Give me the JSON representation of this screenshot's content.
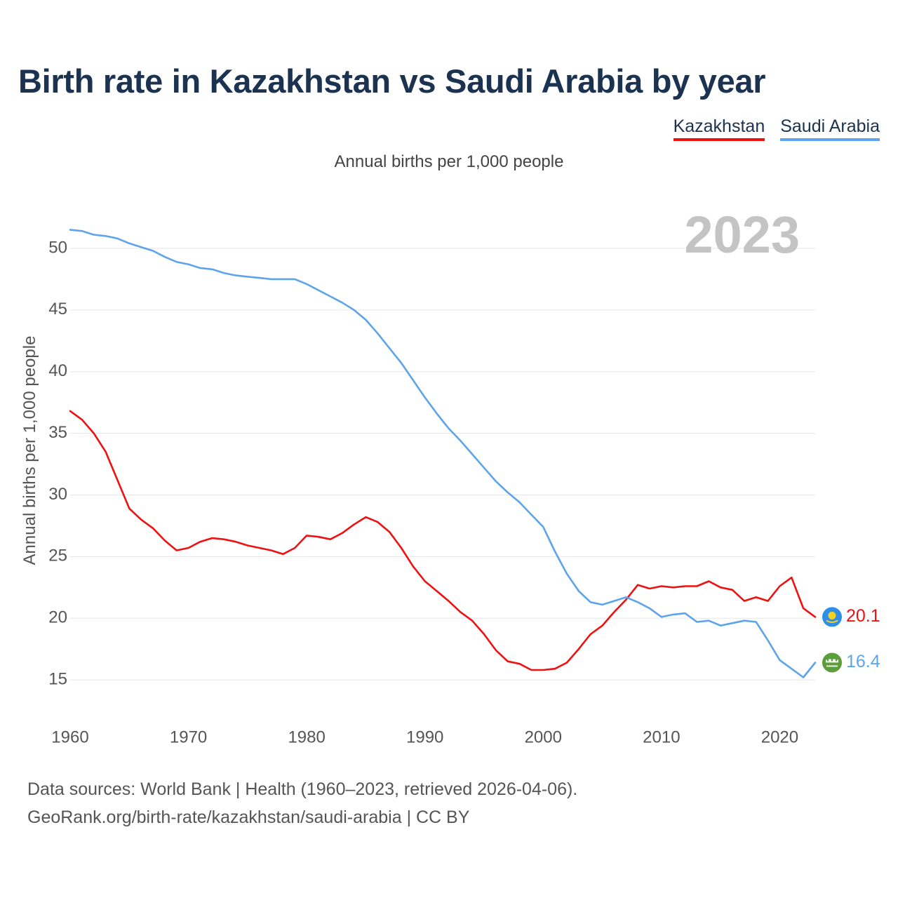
{
  "title": "Birth rate in Kazakhstan vs Saudi Arabia by year",
  "subtitle": "Annual births per 1,000 people",
  "legend": {
    "kazakhstan": "Kazakhstan",
    "saudi_arabia": "Saudi Arabia"
  },
  "year_label": "2023",
  "end_labels": {
    "kazakhstan": "20.1",
    "saudi_arabia": "16.4"
  },
  "source": {
    "line1": "Data sources: World Bank | Health (1960–2023, retrieved 2026-04-06).",
    "line2": "GeoRank.org/birth-rate/kazakhstan/saudi-arabia | CC BY"
  },
  "colors": {
    "kazakhstan": "#ee1111",
    "saudi_arabia": "#5ea4ea",
    "title": "#1b3250",
    "grid": "#e6e6e6",
    "year_watermark": "#c4c4c4"
  },
  "icons": {
    "kazakhstan": "kazakhstan-flag-icon",
    "saudi_arabia": "saudi-arabia-flag-icon"
  },
  "chart_data": {
    "type": "line",
    "title": "Birth rate in Kazakhstan vs Saudi Arabia by year",
    "xlabel": "",
    "ylabel": "Annual births per 1,000 people",
    "xlim": [
      1960,
      2023
    ],
    "ylim": [
      12.5,
      52.5
    ],
    "grid": true,
    "legend": "top-right",
    "x_ticks": [
      1960,
      1970,
      1980,
      1990,
      2000,
      2010,
      2020
    ],
    "y_ticks": [
      15,
      20,
      25,
      30,
      35,
      40,
      45,
      50
    ],
    "x": [
      1960,
      1961,
      1962,
      1963,
      1964,
      1965,
      1966,
      1967,
      1968,
      1969,
      1970,
      1971,
      1972,
      1973,
      1974,
      1975,
      1976,
      1977,
      1978,
      1979,
      1980,
      1981,
      1982,
      1983,
      1984,
      1985,
      1986,
      1987,
      1988,
      1989,
      1990,
      1991,
      1992,
      1993,
      1994,
      1995,
      1996,
      1997,
      1998,
      1999,
      2000,
      2001,
      2002,
      2003,
      2004,
      2005,
      2006,
      2007,
      2008,
      2009,
      2010,
      2011,
      2012,
      2013,
      2014,
      2015,
      2016,
      2017,
      2018,
      2019,
      2020,
      2021,
      2022,
      2023
    ],
    "series": [
      {
        "name": "Kazakhstan",
        "values": [
          36.8,
          36.1,
          35.0,
          33.5,
          31.2,
          28.9,
          28.0,
          27.3,
          26.3,
          25.5,
          25.7,
          26.2,
          26.5,
          26.4,
          26.2,
          25.9,
          25.7,
          25.5,
          25.2,
          25.7,
          26.7,
          26.6,
          26.4,
          26.9,
          27.6,
          28.2,
          27.8,
          27.0,
          25.7,
          24.2,
          23.0,
          22.2,
          21.4,
          20.5,
          19.8,
          18.7,
          17.4,
          16.5,
          16.3,
          15.8,
          15.8,
          15.9,
          16.4,
          17.5,
          18.7,
          19.4,
          20.5,
          21.5,
          22.7,
          22.4,
          22.6,
          22.5,
          22.6,
          22.6,
          23.0,
          22.5,
          22.3,
          21.4,
          21.7,
          21.4,
          22.6,
          23.3,
          20.8,
          20.1
        ]
      },
      {
        "name": "Saudi Arabia",
        "values": [
          51.5,
          51.4,
          51.1,
          51.0,
          50.8,
          50.4,
          50.1,
          49.8,
          49.3,
          48.9,
          48.7,
          48.4,
          48.3,
          48.0,
          47.8,
          47.7,
          47.6,
          47.5,
          47.5,
          47.5,
          47.1,
          46.6,
          46.1,
          45.6,
          45.0,
          44.2,
          43.1,
          41.9,
          40.7,
          39.3,
          37.9,
          36.6,
          35.4,
          34.4,
          33.3,
          32.2,
          31.1,
          30.2,
          29.4,
          28.4,
          27.4,
          25.4,
          23.6,
          22.2,
          21.3,
          21.1,
          21.4,
          21.7,
          21.3,
          20.8,
          20.1,
          20.3,
          20.4,
          19.7,
          19.8,
          19.4,
          19.6,
          19.8,
          19.7,
          18.2,
          16.6,
          15.9,
          15.2,
          16.4
        ]
      }
    ]
  }
}
